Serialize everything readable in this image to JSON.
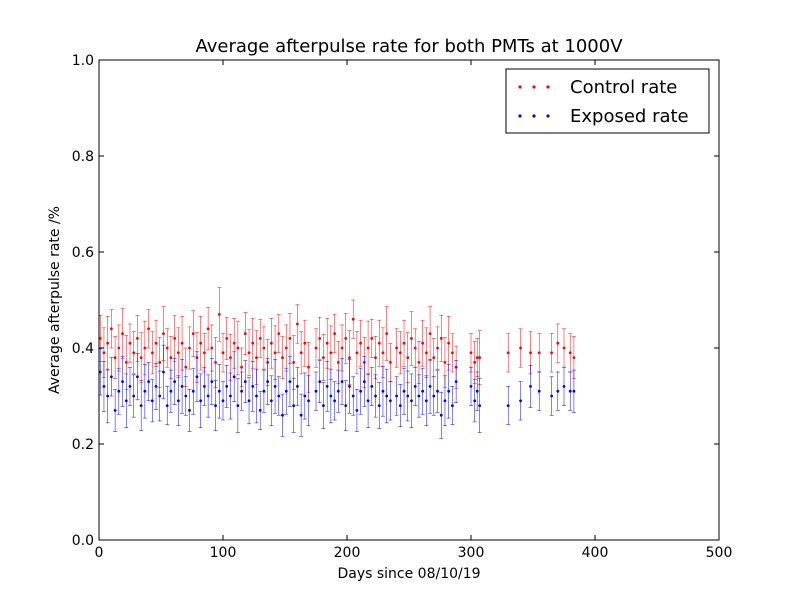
{
  "chart_data": {
    "type": "scatter",
    "title": "Average afterpulse rate for both PMTs at 1000V",
    "xlabel": "Days since 08/10/19",
    "ylabel": "Average afterpulse rate /%",
    "xlim": [
      0,
      500
    ],
    "ylim": [
      0.0,
      1.0
    ],
    "xticks": [
      "0",
      "100",
      "200",
      "300",
      "400",
      "500"
    ],
    "yticks": [
      "0.0",
      "0.2",
      "0.4",
      "0.6",
      "0.8",
      "1.0"
    ],
    "grid": false,
    "legend_position": "top-right",
    "error_bars": true,
    "series": [
      {
        "name": "Control rate",
        "color": "#ff0000",
        "mean": 0.4,
        "x_start": 0,
        "x_end": 383,
        "points": [
          [
            1,
            0.42
          ],
          [
            4,
            0.39
          ],
          [
            7,
            0.41
          ],
          [
            10,
            0.44
          ],
          [
            13,
            0.38
          ],
          [
            16,
            0.4
          ],
          [
            19,
            0.43
          ],
          [
            22,
            0.37
          ],
          [
            25,
            0.41
          ],
          [
            28,
            0.39
          ],
          [
            31,
            0.42
          ],
          [
            34,
            0.38
          ],
          [
            37,
            0.4
          ],
          [
            40,
            0.44
          ],
          [
            43,
            0.39
          ],
          [
            46,
            0.41
          ],
          [
            49,
            0.37
          ],
          [
            52,
            0.43
          ],
          [
            55,
            0.4
          ],
          [
            58,
            0.38
          ],
          [
            61,
            0.42
          ],
          [
            64,
            0.39
          ],
          [
            67,
            0.41
          ],
          [
            70,
            0.36
          ],
          [
            73,
            0.4
          ],
          [
            76,
            0.43
          ],
          [
            79,
            0.38
          ],
          [
            82,
            0.41
          ],
          [
            85,
            0.39
          ],
          [
            88,
            0.44
          ],
          [
            91,
            0.4
          ],
          [
            94,
            0.37
          ],
          [
            97,
            0.47
          ],
          [
            100,
            0.39
          ],
          [
            103,
            0.42
          ],
          [
            106,
            0.38
          ],
          [
            109,
            0.41
          ],
          [
            112,
            0.4
          ],
          [
            115,
            0.36
          ],
          [
            118,
            0.43
          ],
          [
            121,
            0.39
          ],
          [
            124,
            0.41
          ],
          [
            127,
            0.38
          ],
          [
            130,
            0.42
          ],
          [
            133,
            0.4
          ],
          [
            136,
            0.37
          ],
          [
            139,
            0.41
          ],
          [
            142,
            0.39
          ],
          [
            145,
            0.43
          ],
          [
            148,
            0.38
          ],
          [
            151,
            0.4
          ],
          [
            154,
            0.42
          ],
          [
            157,
            0.37
          ],
          [
            160,
            0.45
          ],
          [
            163,
            0.39
          ],
          [
            166,
            0.41
          ],
          [
            169,
            0.36
          ],
          [
            175,
            0.4
          ],
          [
            178,
            0.42
          ],
          [
            181,
            0.38
          ],
          [
            184,
            0.41
          ],
          [
            187,
            0.39
          ],
          [
            190,
            0.43
          ],
          [
            193,
            0.37
          ],
          [
            196,
            0.4
          ],
          [
            199,
            0.42
          ],
          [
            202,
            0.38
          ],
          [
            205,
            0.46
          ],
          [
            208,
            0.39
          ],
          [
            211,
            0.41
          ],
          [
            214,
            0.37
          ],
          [
            217,
            0.4
          ],
          [
            220,
            0.42
          ],
          [
            223,
            0.38
          ],
          [
            226,
            0.41
          ],
          [
            229,
            0.39
          ],
          [
            232,
            0.43
          ],
          [
            235,
            0.37
          ],
          [
            240,
            0.4
          ],
          [
            243,
            0.39
          ],
          [
            246,
            0.41
          ],
          [
            249,
            0.38
          ],
          [
            252,
            0.42
          ],
          [
            255,
            0.4
          ],
          [
            258,
            0.37
          ],
          [
            261,
            0.41
          ],
          [
            264,
            0.39
          ],
          [
            267,
            0.43
          ],
          [
            270,
            0.38
          ],
          [
            273,
            0.4
          ],
          [
            276,
            0.42
          ],
          [
            279,
            0.37
          ],
          [
            282,
            0.41
          ],
          [
            285,
            0.39
          ],
          [
            288,
            0.36
          ],
          [
            300,
            0.39
          ],
          [
            303,
            0.37
          ],
          [
            305,
            0.38
          ],
          [
            307,
            0.38
          ],
          [
            330,
            0.39
          ],
          [
            340,
            0.4
          ],
          [
            348,
            0.39
          ],
          [
            355,
            0.39
          ],
          [
            365,
            0.39
          ],
          [
            370,
            0.41
          ],
          [
            375,
            0.4
          ],
          [
            380,
            0.39
          ],
          [
            383,
            0.38
          ]
        ]
      },
      {
        "name": "Exposed rate",
        "color": "#0000ff",
        "mean": 0.31,
        "x_start": 0,
        "x_end": 383,
        "points": [
          [
            1,
            0.35
          ],
          [
            4,
            0.32
          ],
          [
            7,
            0.3
          ],
          [
            10,
            0.34
          ],
          [
            13,
            0.27
          ],
          [
            16,
            0.31
          ],
          [
            19,
            0.33
          ],
          [
            22,
            0.29
          ],
          [
            25,
            0.32
          ],
          [
            28,
            0.3
          ],
          [
            31,
            0.34
          ],
          [
            34,
            0.28
          ],
          [
            37,
            0.31
          ],
          [
            40,
            0.33
          ],
          [
            43,
            0.29
          ],
          [
            46,
            0.32
          ],
          [
            49,
            0.3
          ],
          [
            52,
            0.35
          ],
          [
            55,
            0.28
          ],
          [
            58,
            0.31
          ],
          [
            61,
            0.33
          ],
          [
            64,
            0.29
          ],
          [
            67,
            0.32
          ],
          [
            70,
            0.3
          ],
          [
            73,
            0.27
          ],
          [
            76,
            0.31
          ],
          [
            79,
            0.34
          ],
          [
            82,
            0.29
          ],
          [
            85,
            0.32
          ],
          [
            88,
            0.3
          ],
          [
            91,
            0.33
          ],
          [
            94,
            0.28
          ],
          [
            97,
            0.31
          ],
          [
            100,
            0.29
          ],
          [
            103,
            0.32
          ],
          [
            106,
            0.3
          ],
          [
            109,
            0.34
          ],
          [
            112,
            0.28
          ],
          [
            115,
            0.31
          ],
          [
            118,
            0.33
          ],
          [
            121,
            0.29
          ],
          [
            124,
            0.32
          ],
          [
            127,
            0.3
          ],
          [
            130,
            0.27
          ],
          [
            133,
            0.31
          ],
          [
            136,
            0.33
          ],
          [
            139,
            0.29
          ],
          [
            142,
            0.32
          ],
          [
            145,
            0.3
          ],
          [
            148,
            0.26
          ],
          [
            151,
            0.31
          ],
          [
            154,
            0.33
          ],
          [
            157,
            0.28
          ],
          [
            160,
            0.32
          ],
          [
            163,
            0.26
          ],
          [
            166,
            0.3
          ],
          [
            169,
            0.29
          ],
          [
            175,
            0.31
          ],
          [
            178,
            0.33
          ],
          [
            181,
            0.28
          ],
          [
            184,
            0.32
          ],
          [
            187,
            0.3
          ],
          [
            190,
            0.29
          ],
          [
            193,
            0.31
          ],
          [
            196,
            0.33
          ],
          [
            199,
            0.28
          ],
          [
            202,
            0.32
          ],
          [
            205,
            0.3
          ],
          [
            208,
            0.27
          ],
          [
            211,
            0.31
          ],
          [
            214,
            0.33
          ],
          [
            217,
            0.29
          ],
          [
            220,
            0.32
          ],
          [
            223,
            0.3
          ],
          [
            226,
            0.28
          ],
          [
            229,
            0.31
          ],
          [
            232,
            0.3
          ],
          [
            235,
            0.29
          ],
          [
            240,
            0.3
          ],
          [
            243,
            0.28
          ],
          [
            246,
            0.31
          ],
          [
            249,
            0.3
          ],
          [
            252,
            0.29
          ],
          [
            255,
            0.32
          ],
          [
            258,
            0.3
          ],
          [
            261,
            0.31
          ],
          [
            264,
            0.29
          ],
          [
            267,
            0.32
          ],
          [
            270,
            0.3
          ],
          [
            273,
            0.31
          ],
          [
            276,
            0.26
          ],
          [
            279,
            0.29
          ],
          [
            282,
            0.31
          ],
          [
            285,
            0.28
          ],
          [
            288,
            0.33
          ],
          [
            300,
            0.32
          ],
          [
            303,
            0.29
          ],
          [
            305,
            0.31
          ],
          [
            307,
            0.28
          ],
          [
            330,
            0.28
          ],
          [
            340,
            0.29
          ],
          [
            348,
            0.32
          ],
          [
            355,
            0.31
          ],
          [
            365,
            0.3
          ],
          [
            370,
            0.31
          ],
          [
            375,
            0.32
          ],
          [
            380,
            0.31
          ],
          [
            383,
            0.31
          ]
        ]
      }
    ]
  }
}
